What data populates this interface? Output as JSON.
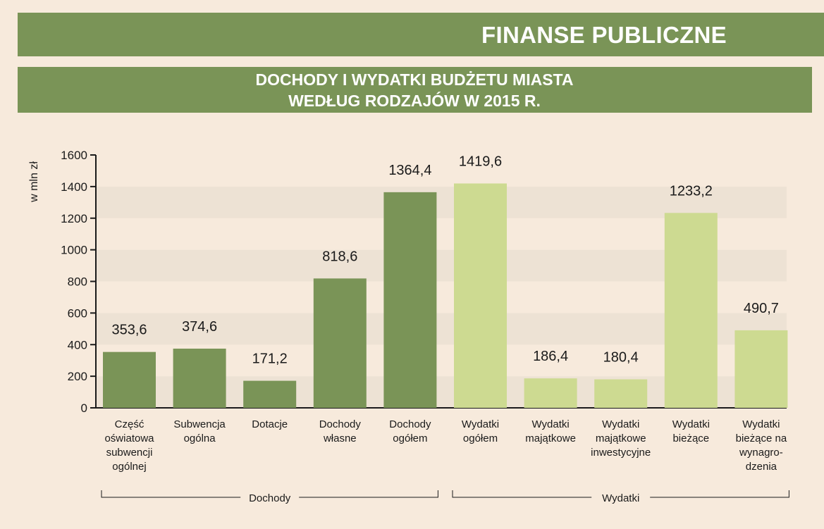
{
  "header": {
    "section_title": "FINANSE PUBLICZNE",
    "chart_title_line1": "DOCHODY I WYDATKI BUDŻETU MIASTA",
    "chart_title_line2": "WEDŁUG RODZAJÓW W 2015 R."
  },
  "colors": {
    "header_bg": "#7a9457",
    "dochody_bar": "#7a9457",
    "wydatki_bar": "#cdda91",
    "page_bg": "#f7eadc",
    "band_bg": "#ede2d4"
  },
  "chart_data": {
    "type": "bar",
    "title": "DOCHODY I WYDATKI BUDŻETU MIASTA WEDŁUG RODZAJÓW W 2015 R.",
    "ylabel": "w mln zł",
    "ylim": [
      0,
      1600
    ],
    "yticks": [
      "0",
      "200",
      "400",
      "600",
      "800",
      "1000",
      "1200",
      "1400",
      "1600"
    ],
    "grid": "horizontal alternating bands",
    "categories": [
      [
        "Część",
        "oświatowa",
        "subwencji",
        "ogólnej"
      ],
      [
        "Subwencja",
        "ogólna"
      ],
      [
        "Dotacje"
      ],
      [
        "Dochody",
        "własne"
      ],
      [
        "Dochody",
        "ogółem"
      ],
      [
        "Wydatki",
        "ogółem"
      ],
      [
        "Wydatki",
        "majątkowe"
      ],
      [
        "Wydatki",
        "majątkowe",
        "inwestycyjne"
      ],
      [
        "Wydatki",
        "bieżące"
      ],
      [
        "Wydatki",
        "bieżące na",
        "wynagro-",
        "dzenia"
      ]
    ],
    "values": [
      353.6,
      374.6,
      171.2,
      818.6,
      1364.4,
      1419.6,
      186.4,
      180.4,
      1233.2,
      490.7
    ],
    "value_labels": [
      "353,6",
      "374,6",
      "171,2",
      "818,6",
      "1364,4",
      "1419,6",
      "186,4",
      "180,4",
      "1233,2",
      "490,7"
    ],
    "groups": [
      {
        "name": "Dochody",
        "start": 0,
        "end": 4
      },
      {
        "name": "Wydatki",
        "start": 5,
        "end": 9
      }
    ]
  }
}
